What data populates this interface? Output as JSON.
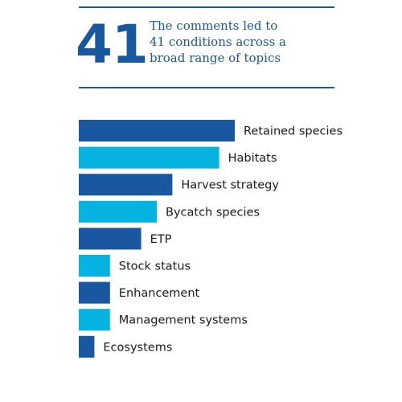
{
  "headline": {
    "number": "41",
    "text_lines": [
      "The comments led to",
      "41 conditions across a",
      "broad range of topics"
    ]
  },
  "colors": {
    "dark_blue": "#1a57a1",
    "light_blue": "#06b2df",
    "rule": "#1a57a1"
  },
  "chart_data": {
    "type": "bar",
    "orientation": "horizontal",
    "categories": [
      "Retained species",
      "Habitats",
      "Harvest strategy",
      "Bycatch species",
      "ETP",
      "Stock status",
      "Enhancement",
      "Management systems",
      "Ecosystems"
    ],
    "values": [
      10,
      9,
      6,
      5,
      4,
      2,
      2,
      2,
      1
    ],
    "bar_colors": [
      "dark_blue",
      "light_blue",
      "dark_blue",
      "light_blue",
      "dark_blue",
      "light_blue",
      "dark_blue",
      "light_blue",
      "dark_blue"
    ],
    "xlim": [
      0,
      10
    ],
    "grid": false,
    "legend": "none",
    "title": "",
    "xlabel": "",
    "ylabel": ""
  }
}
